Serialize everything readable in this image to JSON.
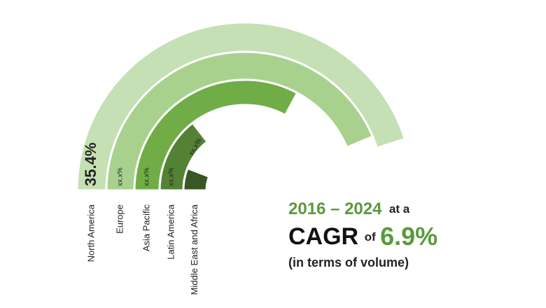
{
  "chart_data": {
    "type": "radial-bar",
    "categories": [
      "North America",
      "Europe",
      "Asia Pacific",
      "Latin America",
      "Middle East and Africa"
    ],
    "values": [
      35.4,
      34.3,
      25.8,
      11.4,
      4.6
    ],
    "value_labels": [
      "35.4%",
      "xx.x%",
      "xx.x%",
      "xx.x%",
      "xx.x%"
    ],
    "colors": [
      "#c5e0b4",
      "#a9d18e",
      "#70ad47",
      "#548235",
      "#385723"
    ],
    "ylim": [
      0,
      39.3
    ]
  },
  "annotation": {
    "period": "2016 – 2024",
    "connector": "at a",
    "metric": "CAGR",
    "of": "of",
    "value": "6.9%",
    "note": "(in terms of volume)"
  }
}
